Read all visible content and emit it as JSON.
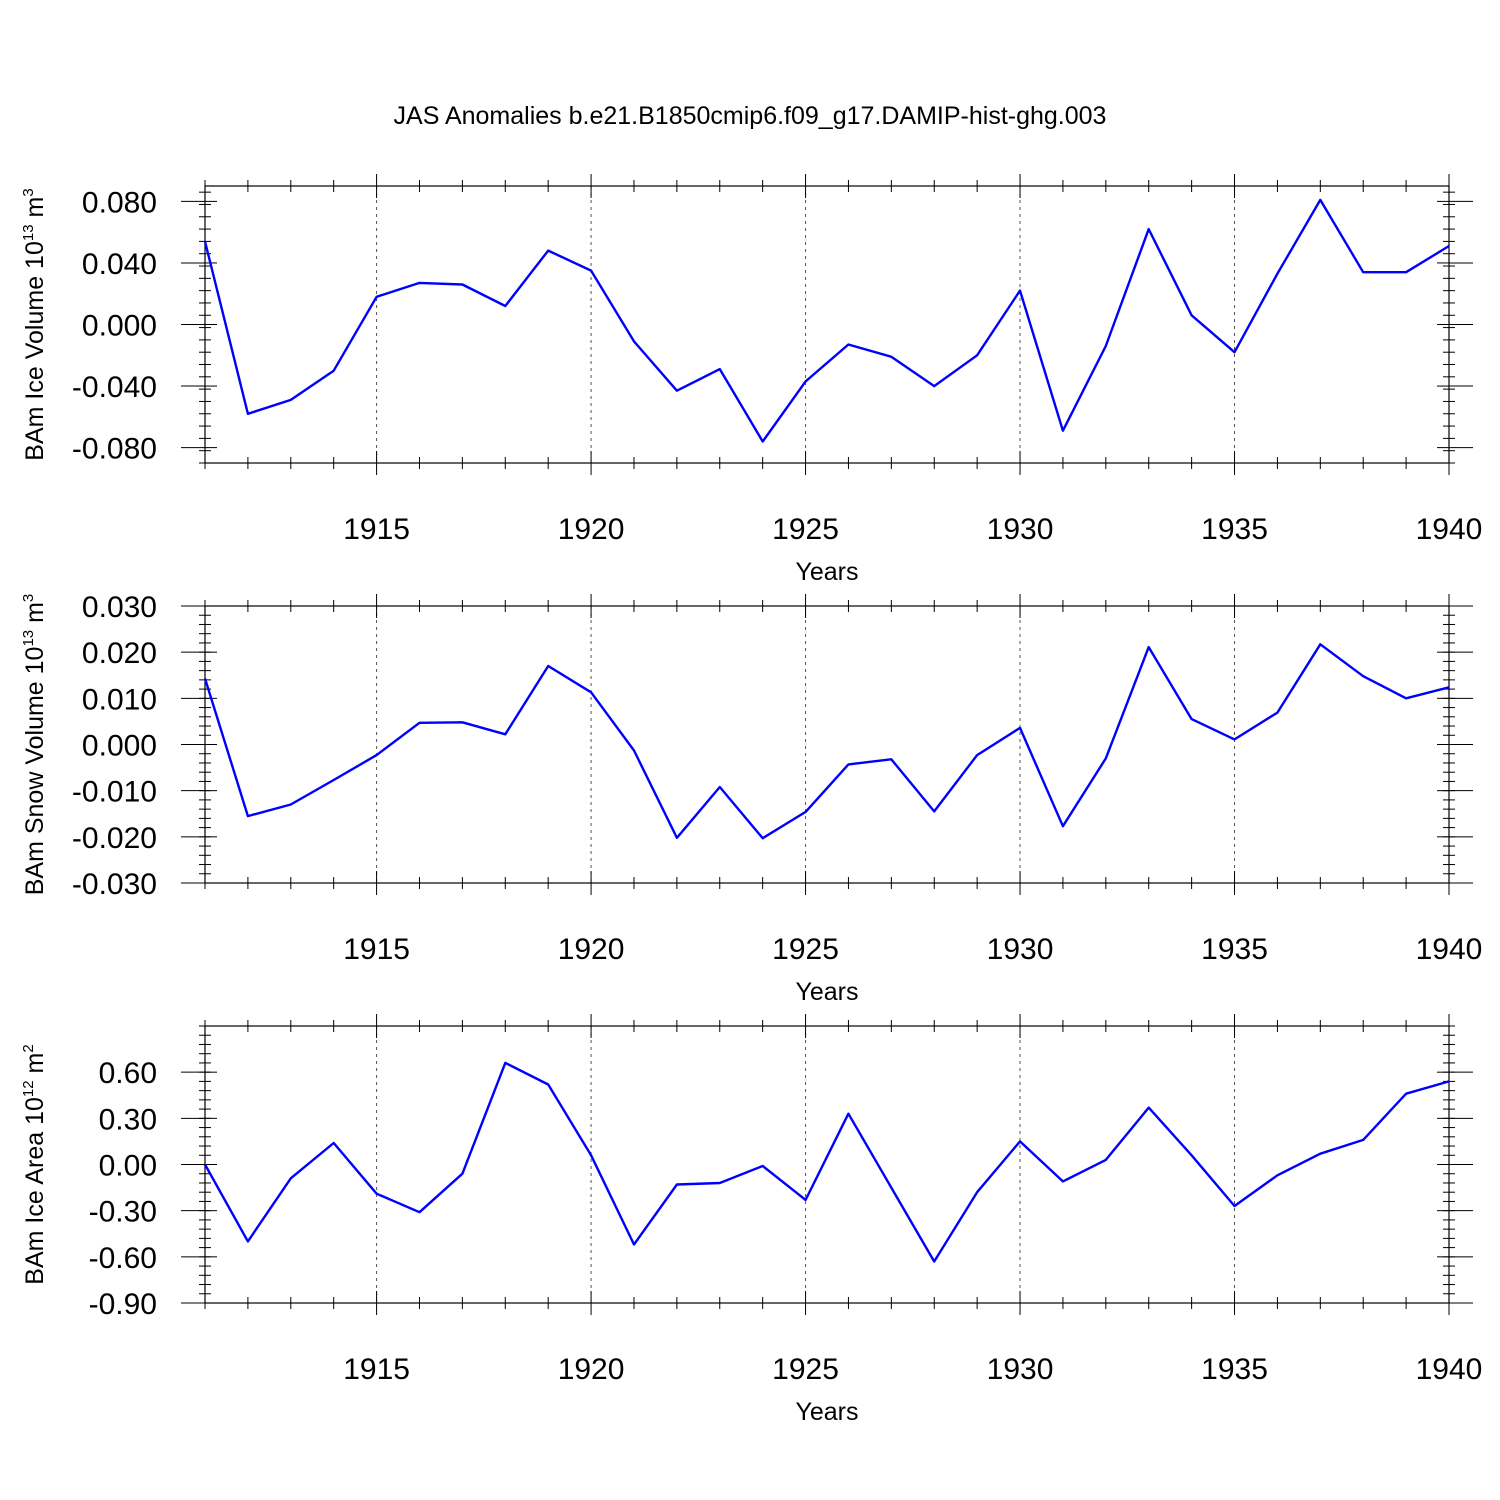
{
  "title": "JAS Anomalies b.e21.B1850cmip6.f09_g17.DAMIP-hist-ghg.003",
  "colors": {
    "line": "#0000ff",
    "axis": "#000000",
    "grid": "#555555"
  },
  "chart_data": [
    {
      "type": "line",
      "ylabel": "BAm Ice Volume 10",
      "ylabel_exp": "13",
      "ylabel_unit": " m",
      "ylabel_unit_exp": "3",
      "xlabel": "Years",
      "xlim": [
        1911,
        1940
      ],
      "ylim": [
        -0.09,
        0.09
      ],
      "xticks": [
        1915,
        1920,
        1925,
        1930,
        1935,
        1940
      ],
      "yticks": [
        -0.08,
        -0.04,
        0.0,
        0.04,
        0.08
      ],
      "ytick_labels": [
        "-0.080",
        "-0.040",
        "0.000",
        "0.040",
        "0.080"
      ],
      "yminor_step": 0.008,
      "grid": "vertical dashed at major x ticks",
      "series": [
        {
          "name": "BAm Ice Volume",
          "x": [
            1911,
            1912,
            1913,
            1914,
            1915,
            1916,
            1917,
            1918,
            1919,
            1920,
            1921,
            1922,
            1923,
            1924,
            1925,
            1926,
            1927,
            1928,
            1929,
            1930,
            1931,
            1932,
            1933,
            1934,
            1935,
            1936,
            1937,
            1938,
            1939,
            1940
          ],
          "values": [
            0.054,
            -0.058,
            -0.049,
            -0.03,
            0.018,
            0.027,
            0.026,
            0.012,
            0.048,
            0.035,
            -0.011,
            -0.043,
            -0.029,
            -0.076,
            -0.037,
            -0.013,
            -0.021,
            -0.04,
            -0.02,
            0.022,
            -0.069,
            -0.014,
            0.062,
            0.006,
            -0.018,
            0.033,
            0.081,
            0.034,
            0.034,
            0.051
          ]
        }
      ]
    },
    {
      "type": "line",
      "ylabel": "BAm Snow Volume 10",
      "ylabel_exp": "13",
      "ylabel_unit": " m",
      "ylabel_unit_exp": "3",
      "xlabel": "Years",
      "xlim": [
        1911,
        1940
      ],
      "ylim": [
        -0.03,
        0.03
      ],
      "xticks": [
        1915,
        1920,
        1925,
        1930,
        1935,
        1940
      ],
      "yticks": [
        -0.03,
        -0.02,
        -0.01,
        0.0,
        0.01,
        0.02,
        0.03
      ],
      "ytick_labels": [
        "-0.030",
        "-0.020",
        "-0.010",
        "0.000",
        "0.010",
        "0.020",
        "0.030"
      ],
      "yminor_step": 0.002,
      "grid": "vertical dashed at major x ticks",
      "series": [
        {
          "name": "BAm Snow Volume",
          "x": [
            1911,
            1912,
            1913,
            1914,
            1915,
            1916,
            1917,
            1918,
            1919,
            1920,
            1921,
            1922,
            1923,
            1924,
            1925,
            1926,
            1927,
            1928,
            1929,
            1930,
            1931,
            1932,
            1933,
            1934,
            1935,
            1936,
            1937,
            1938,
            1939,
            1940
          ],
          "values": [
            0.0143,
            -0.0155,
            -0.013,
            -0.0077,
            -0.0023,
            0.0047,
            0.0048,
            0.0022,
            0.017,
            0.0113,
            -0.0013,
            -0.0202,
            -0.0092,
            -0.0203,
            -0.0146,
            -0.0043,
            -0.0032,
            -0.0145,
            -0.0023,
            0.0036,
            -0.0177,
            -0.003,
            0.0211,
            0.0055,
            0.0011,
            0.0069,
            0.0217,
            0.0148,
            0.01,
            0.0124
          ]
        }
      ]
    },
    {
      "type": "line",
      "ylabel": "BAm Ice Area 10",
      "ylabel_exp": "12",
      "ylabel_unit": " m",
      "ylabel_unit_exp": "2",
      "xlabel": "Years",
      "xlim": [
        1911,
        1940
      ],
      "ylim": [
        -0.9,
        0.9
      ],
      "xticks": [
        1915,
        1920,
        1925,
        1930,
        1935,
        1940
      ],
      "yticks": [
        -0.9,
        -0.6,
        -0.3,
        0.0,
        0.3,
        0.6
      ],
      "ytick_labels": [
        "-0.90",
        "-0.60",
        "-0.30",
        "0.00",
        "0.30",
        "0.60"
      ],
      "yminor_step": 0.06,
      "grid": "vertical dashed at major x ticks",
      "series": [
        {
          "name": "BAm Ice Area",
          "x": [
            1911,
            1912,
            1913,
            1914,
            1915,
            1916,
            1917,
            1918,
            1919,
            1920,
            1921,
            1922,
            1923,
            1924,
            1925,
            1926,
            1927,
            1928,
            1929,
            1930,
            1931,
            1932,
            1933,
            1934,
            1935,
            1936,
            1937,
            1938,
            1939,
            1940
          ],
          "values": [
            0.0,
            -0.5,
            -0.09,
            0.14,
            -0.19,
            -0.31,
            -0.06,
            0.66,
            0.52,
            0.06,
            -0.52,
            -0.13,
            -0.12,
            -0.01,
            -0.23,
            0.33,
            -0.15,
            -0.63,
            -0.18,
            0.15,
            -0.11,
            0.03,
            0.37,
            0.06,
            -0.27,
            -0.07,
            0.07,
            0.16,
            0.46,
            0.54
          ]
        }
      ]
    }
  ]
}
